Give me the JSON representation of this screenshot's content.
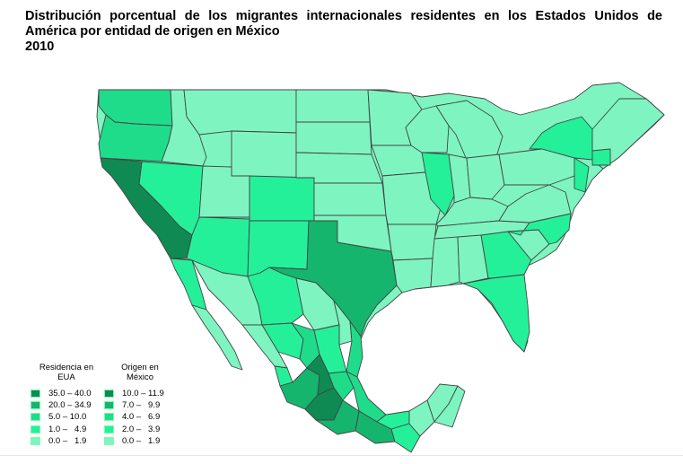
{
  "title": {
    "line1": "Distribución porcentual de los migrantes internacionales residentes en los Estados Unidos de",
    "line2": "América por entidad de origen en México",
    "line3": "2010"
  },
  "colors": {
    "c1": "#7ef5c0",
    "c2": "#25f09a",
    "c3": "#1fdc8a",
    "c4": "#15b56d",
    "c5": "#0f8a52",
    "border": "#444444"
  },
  "legend_usa": {
    "title_line1": "Residencia en",
    "title_line2": "EUA",
    "items": [
      {
        "label": "35.0 – 40.0",
        "color": "#0f8a52"
      },
      {
        "label": "20.0 – 34.9",
        "color": "#15b56d"
      },
      {
        "label": "5.0 – 10.0",
        "color": "#1fdc8a"
      },
      {
        "label": "1.0 –   4.9",
        "color": "#25f09a"
      },
      {
        "label": "0.0 –   1.9",
        "color": "#7ef5c0"
      }
    ]
  },
  "legend_mexico": {
    "title_line1": "Origen en",
    "title_line2": "México",
    "items": [
      {
        "label": "10.0 – 11.9",
        "color": "#0f8a52"
      },
      {
        "label": "7.0 –   9.9",
        "color": "#15b56d"
      },
      {
        "label": "4.0 –   6.9",
        "color": "#1fdc8a"
      },
      {
        "label": "2.0 –   3.9",
        "color": "#25f09a"
      },
      {
        "label": "0.0 –   1.9",
        "color": "#7ef5c0"
      }
    ]
  }
}
